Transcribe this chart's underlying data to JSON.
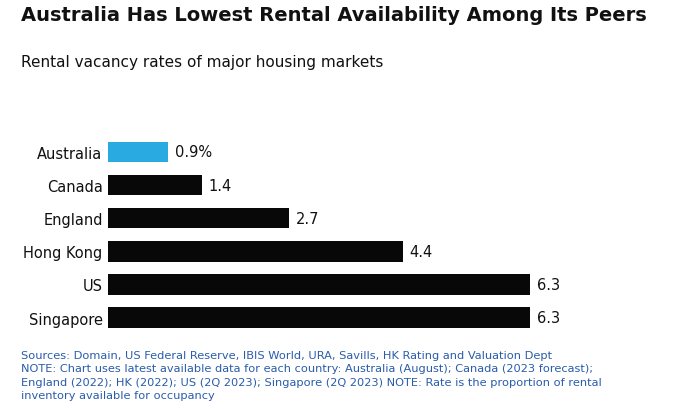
{
  "title": "Australia Has Lowest Rental Availability Among Its Peers",
  "subtitle": "Rental vacancy rates of major housing markets",
  "categories": [
    "Australia",
    "Canada",
    "England",
    "Hong Kong",
    "US",
    "Singapore"
  ],
  "values": [
    0.9,
    1.4,
    2.7,
    4.4,
    6.3,
    6.3
  ],
  "labels": [
    "0.9%",
    "1.4",
    "2.7",
    "4.4",
    "6.3",
    "6.3"
  ],
  "bar_colors": [
    "#29ABE2",
    "#080808",
    "#080808",
    "#080808",
    "#080808",
    "#080808"
  ],
  "xlim": [
    0,
    7.5
  ],
  "background_color": "#ffffff",
  "footnote": "Sources: Domain, US Federal Reserve, IBIS World, URA, Savills, HK Rating and Valuation Dept\nNOTE: Chart uses latest available data for each country: Australia (August); Canada (2023 forecast);\nEngland (2022); HK (2022); US (2Q 2023); Singapore (2Q 2023) NOTE: Rate is the proportion of rental\ninventory available for occupancy",
  "footnote_color": "#2a5caa",
  "title_fontsize": 14,
  "subtitle_fontsize": 11,
  "label_fontsize": 10.5,
  "footnote_fontsize": 8.2
}
